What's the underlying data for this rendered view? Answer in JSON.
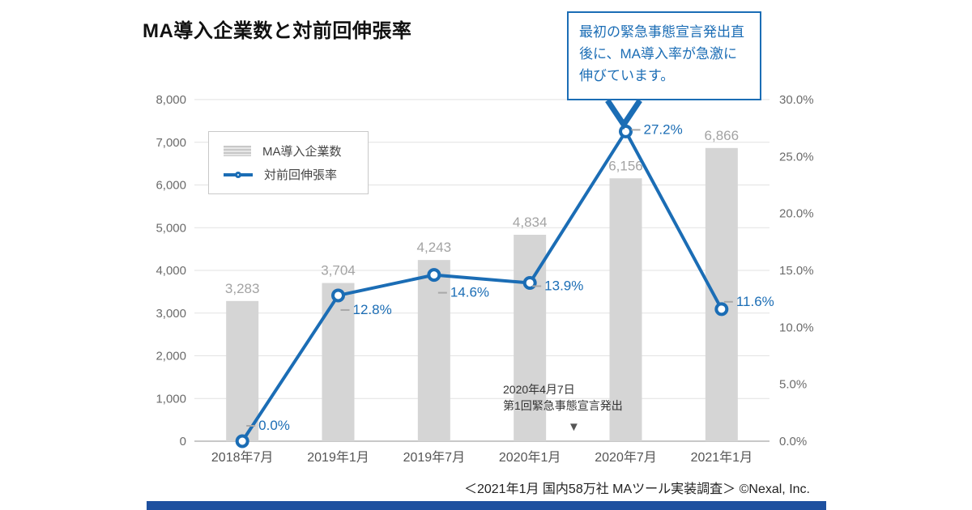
{
  "page": {
    "title": "MA導入企業数と対前回伸張率",
    "footer": "＜2021年1月 国内58万社 MAツール実装調査＞ ©Nexal, Inc.",
    "accent_color": "#1b6db5",
    "bar_color": "#d5d5d5",
    "bottom_bar_color": "#1e509f"
  },
  "legend": {
    "bar_label": "MA導入企業数",
    "line_label": "対前回伸張率"
  },
  "callout": {
    "text": "最初の緊急事態宣言発出直後に、MA導入率が急激に伸びています。"
  },
  "event_annotation": {
    "line1": "2020年4月7日",
    "line2": "第1回緊急事態宣言発出",
    "marker": "▼"
  },
  "chart_data": {
    "type": "bar",
    "subtype": "bar+line combo",
    "title": "MA導入企業数と対前回伸張率",
    "categories": [
      "2018年7月",
      "2019年1月",
      "2019年7月",
      "2020年1月",
      "2020年7月",
      "2021年1月"
    ],
    "series": [
      {
        "name": "MA導入企業数",
        "type": "bar",
        "axis": "left",
        "values": [
          3283,
          3704,
          4243,
          4834,
          6156,
          6866
        ],
        "labels": [
          "3,283",
          "3,704",
          "4,243",
          "4,834",
          "6,156",
          "6,866"
        ]
      },
      {
        "name": "対前回伸張率",
        "type": "line",
        "axis": "right",
        "values": [
          0.0,
          12.8,
          14.6,
          13.9,
          27.2,
          11.6
        ],
        "labels": [
          "0.0%",
          "12.8%",
          "14.6%",
          "13.9%",
          "27.2%",
          "11.6%"
        ]
      }
    ],
    "left_axis": {
      "min": 0,
      "max": 8000,
      "step": 1000,
      "tick_labels": [
        "0",
        "1,000",
        "2,000",
        "3,000",
        "4,000",
        "5,000",
        "6,000",
        "7,000",
        "8,000"
      ]
    },
    "right_axis": {
      "min": 0,
      "max": 30,
      "step": 5,
      "tick_labels": [
        "0.0%",
        "5.0%",
        "10.0%",
        "15.0%",
        "20.0%",
        "25.0%",
        "30.0%"
      ]
    },
    "grid": true,
    "legend_position": "upper-left-inside"
  }
}
